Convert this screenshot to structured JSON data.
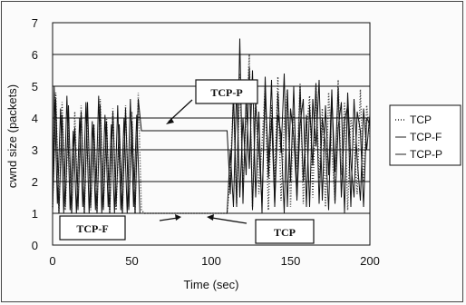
{
  "chart_data": {
    "type": "line",
    "xlabel": "Time (sec)",
    "ylabel": "cwnd size (packets)",
    "xlim": [
      0,
      200
    ],
    "ylim": [
      0,
      7
    ],
    "x_ticks": [
      "0",
      "50",
      "100",
      "150",
      "200"
    ],
    "y_ticks": [
      "0",
      "1",
      "2",
      "3",
      "4",
      "5",
      "6",
      "7"
    ],
    "grid": "horizontal",
    "legend_position": "right",
    "series": [
      {
        "name": "TCP",
        "style": "dotted",
        "x": [
          0,
          2,
          4,
          6,
          8,
          10,
          12,
          14,
          16,
          18,
          20,
          22,
          24,
          26,
          28,
          30,
          32,
          34,
          36,
          38,
          40,
          42,
          44,
          46,
          48,
          50,
          52,
          54,
          56,
          58,
          110,
          112,
          114,
          116,
          118,
          120,
          122,
          124,
          126,
          128,
          130,
          132,
          134,
          136,
          138,
          140,
          142,
          144,
          146,
          148,
          150,
          152,
          154,
          156,
          158,
          160,
          162,
          164,
          166,
          168,
          170,
          172,
          174,
          176,
          178,
          180,
          182,
          184,
          186,
          188,
          190,
          192,
          194,
          196,
          198,
          200
        ],
        "values": [
          1.2,
          4.8,
          1.0,
          4.5,
          1.1,
          3.9,
          1.0,
          4.2,
          1.2,
          4.4,
          1.0,
          4.1,
          1.1,
          3.8,
          1.0,
          4.6,
          1.2,
          4.0,
          1.0,
          4.3,
          1.1,
          3.7,
          1.0,
          4.4,
          1.2,
          4.2,
          1.0,
          4.8,
          1.1,
          1.0,
          1.0,
          2.2,
          4.6,
          1.3,
          5.4,
          1.8,
          4.1,
          6.0,
          1.2,
          4.8,
          1.6,
          3.2,
          5.0,
          1.1,
          4.4,
          2.0,
          5.3,
          1.4,
          3.8,
          4.9,
          1.2,
          4.2,
          2.4,
          5.1,
          1.3,
          3.6,
          4.7,
          1.5,
          5.0,
          2.1,
          4.3,
          1.2,
          4.8,
          3.0,
          1.4,
          5.2,
          2.2,
          4.5,
          1.1,
          4.0,
          3.3,
          1.6,
          4.9,
          2.0,
          4.4,
          3.4
        ]
      },
      {
        "name": "TCP-F",
        "style": "solid",
        "x": [
          0,
          1,
          3,
          5,
          7,
          9,
          11,
          13,
          15,
          17,
          19,
          21,
          23,
          25,
          27,
          29,
          31,
          33,
          35,
          37,
          39,
          41,
          43,
          45,
          47,
          49,
          51,
          53,
          55,
          57,
          58,
          110,
          112,
          114,
          116,
          118,
          120,
          122,
          124,
          126,
          128,
          130,
          132,
          134,
          136,
          138,
          140,
          142,
          144,
          146,
          148,
          150,
          152,
          154,
          156,
          158,
          160,
          162,
          164,
          166,
          168,
          170,
          172,
          174,
          176,
          178,
          180,
          182,
          184,
          186,
          188,
          190,
          192,
          194,
          196,
          198,
          200
        ],
        "values": [
          1.0,
          5.0,
          1.3,
          4.3,
          1.0,
          4.7,
          1.1,
          3.6,
          1.0,
          4.0,
          1.2,
          4.5,
          1.0,
          3.9,
          1.1,
          4.7,
          1.0,
          4.1,
          1.2,
          3.8,
          1.0,
          4.4,
          1.1,
          4.0,
          1.0,
          4.6,
          1.2,
          4.1,
          1.0,
          1.0,
          1.0,
          1.0,
          3.0,
          1.2,
          5.0,
          1.5,
          4.0,
          2.2,
          5.6,
          1.1,
          4.5,
          3.0,
          1.3,
          4.8,
          2.6,
          5.2,
          1.2,
          4.1,
          3.5,
          1.0,
          4.9,
          2.0,
          5.0,
          1.4,
          3.8,
          4.6,
          1.2,
          4.4,
          2.5,
          5.1,
          1.3,
          4.0,
          3.2,
          1.1,
          4.7,
          2.3,
          5.0,
          1.5,
          3.9,
          4.4,
          1.2,
          4.6,
          2.7,
          1.4,
          4.3,
          3.0,
          4.1
        ]
      },
      {
        "name": "TCP-P",
        "style": "solid",
        "x": [
          0,
          2,
          4,
          6,
          8,
          10,
          12,
          14,
          16,
          18,
          20,
          22,
          24,
          26,
          28,
          30,
          32,
          34,
          36,
          38,
          40,
          42,
          44,
          46,
          48,
          50,
          52,
          54,
          56,
          57,
          110,
          112,
          114,
          116,
          118,
          120,
          122,
          124,
          126,
          128,
          130,
          132,
          134,
          136,
          138,
          140,
          142,
          144,
          146,
          148,
          150,
          152,
          154,
          156,
          158,
          160,
          162,
          164,
          166,
          168,
          170,
          172,
          174,
          176,
          178,
          180,
          182,
          184,
          186,
          188,
          190,
          192,
          194,
          196,
          198,
          200
        ],
        "values": [
          1.1,
          4.6,
          1.0,
          4.1,
          1.2,
          4.4,
          1.0,
          3.7,
          1.1,
          4.2,
          1.0,
          4.5,
          1.2,
          3.8,
          1.0,
          4.4,
          1.1,
          3.9,
          1.0,
          4.2,
          1.2,
          3.8,
          1.0,
          4.3,
          1.1,
          3.9,
          1.0,
          4.6,
          3.6,
          3.6,
          3.6,
          1.6,
          4.8,
          1.2,
          6.5,
          1.3,
          4.7,
          2.4,
          5.5,
          1.5,
          4.2,
          1.0,
          5.3,
          2.1,
          4.0,
          1.3,
          4.8,
          2.9,
          5.4,
          1.2,
          4.3,
          3.4,
          1.5,
          5.0,
          2.0,
          4.1,
          1.2,
          4.6,
          3.1,
          5.2,
          1.4,
          4.4,
          2.2,
          4.9,
          1.3,
          3.7,
          4.5,
          1.0,
          4.8,
          2.6,
          1.5,
          4.2,
          3.6,
          1.2,
          4.0,
          3.8
        ]
      }
    ],
    "annotations": [
      {
        "label": "TCP-P",
        "text": "TCP-P"
      },
      {
        "label": "TCP-F",
        "text": "TCP-F"
      },
      {
        "label": "TCP",
        "text": "TCP"
      }
    ]
  }
}
